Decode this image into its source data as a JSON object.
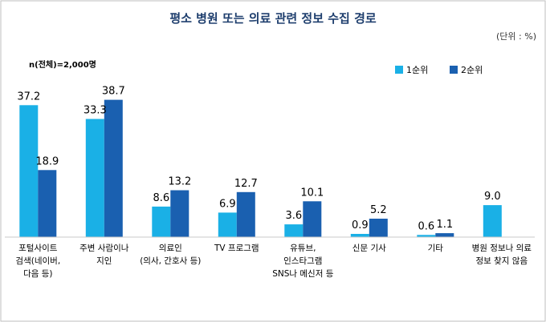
{
  "chart_data": {
    "type": "bar",
    "title": "평소 병원 또는 의료 관련 정보 수집 경로",
    "unit": "(단위 : %)",
    "note": "n(전체)=2,000명",
    "legend_position": "top-right",
    "categories": [
      [
        "포털사이트",
        "검색(네이버,",
        "다음 등)"
      ],
      [
        "주변 사람이나",
        "지인"
      ],
      [
        "의료인",
        "(의사, 간호사 등)"
      ],
      [
        "TV 프로그램"
      ],
      [
        "유튜브,",
        "인스타그램",
        "SNS나 메신저 등"
      ],
      [
        "신문 기사"
      ],
      [
        "기타"
      ],
      [
        "병원 정보나 의료",
        "정보 찾지 않음"
      ]
    ],
    "series": [
      {
        "name": "1순위",
        "color": "#1ab0e6",
        "values": [
          37.2,
          33.3,
          8.6,
          6.9,
          3.6,
          0.9,
          0.6,
          9.0
        ]
      },
      {
        "name": "2순위",
        "color": "#1a60b0",
        "values": [
          18.9,
          38.7,
          13.2,
          12.7,
          10.1,
          5.2,
          1.1,
          null
        ]
      }
    ],
    "ylim": [
      0,
      42
    ],
    "grid": false
  }
}
